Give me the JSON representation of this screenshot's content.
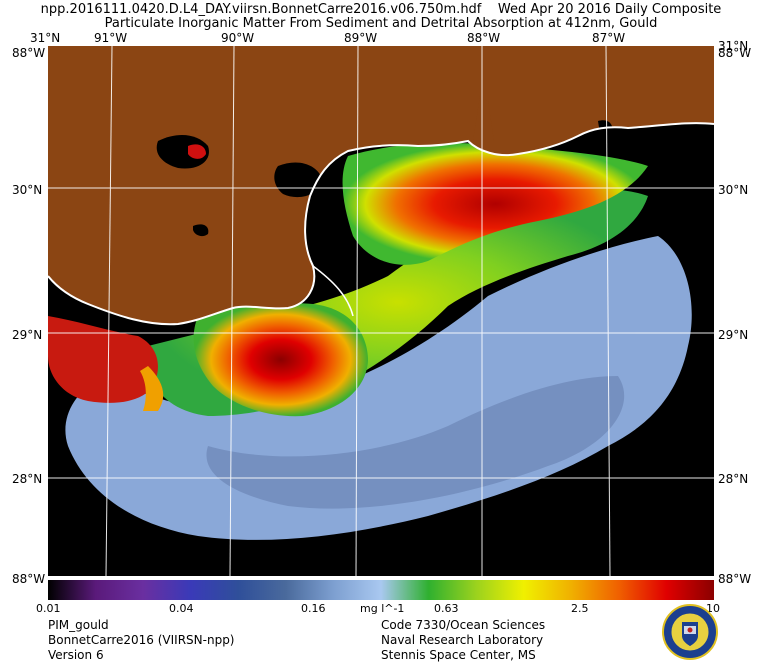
{
  "header": {
    "line1": "npp.2016111.0420.D.L4_DAY.viirsn.BonnetCarre2016.v06.750m.hdf    Wed Apr 20 2016 Daily Composite",
    "line2": "Particulate Inorganic Matter From Sediment and Detrital Absorption at 412nm, Gould"
  },
  "map": {
    "lon_labels": [
      "91°W",
      "90°W",
      "89°W",
      "88°W",
      "87°W"
    ],
    "lat_labels": [
      "30°N",
      "29°N",
      "28°N"
    ],
    "corner_top_left": "31°N",
    "corner_top_right": "31°N",
    "corner_top_left_lon": "88°W",
    "corner_top_right_lon": "88°W",
    "corner_bottom_left": "88°W",
    "corner_bottom_right": "88°W",
    "colors": {
      "land": "#8b4513",
      "no_data": "#000000",
      "coast": "#ffffff",
      "grid": "#ffffff"
    }
  },
  "colorbar": {
    "ticks": [
      "0.01",
      "0.04",
      "0.16",
      "0.63",
      "2.5",
      "10"
    ],
    "units": "mg l^-1",
    "stops": [
      "#000000",
      "#5a1a7a",
      "#6a2fa0",
      "#3a3ab8",
      "#2f4f9a",
      "#4a6a9c",
      "#7d9fd0",
      "#a9c8f0",
      "#2fb02f",
      "#9bd21e",
      "#f0f000",
      "#f0b000",
      "#f06000",
      "#e00000",
      "#8b0000"
    ]
  },
  "footer": {
    "left": [
      "PIM_gould",
      "BonnetCarre2016 (VIIRSN-npp)",
      "Version 6"
    ],
    "right": [
      "Code 7330/Ocean Sciences",
      "Naval Research Laboratory",
      "Stennis Space Center, MS"
    ]
  }
}
